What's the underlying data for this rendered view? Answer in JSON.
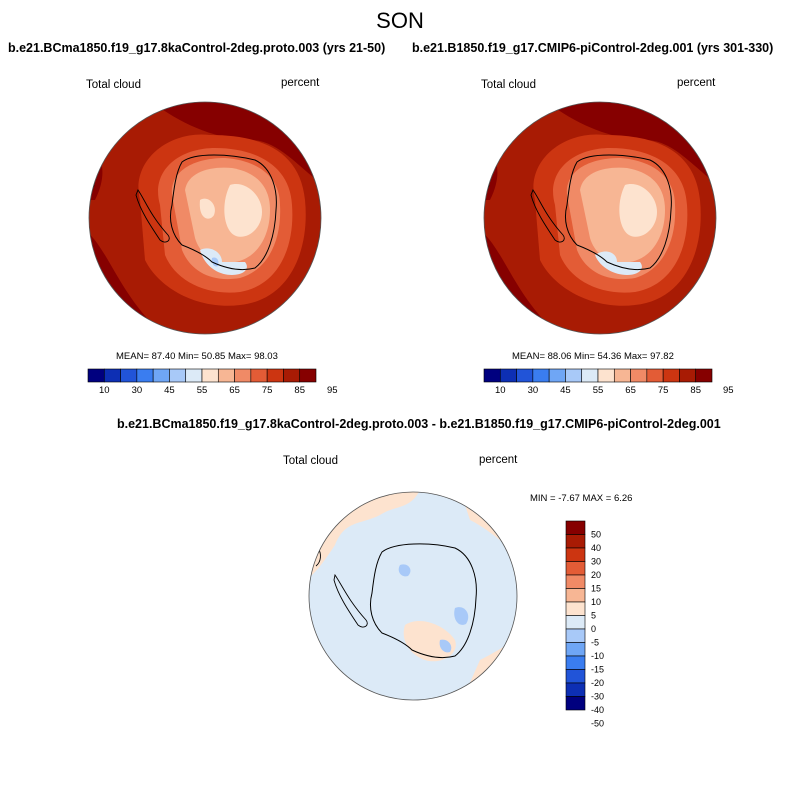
{
  "season": "SON",
  "panels": [
    {
      "title": "b.e21.BCma1850.f19_g17.8kaControl-2deg.proto.003 (yrs 21-50)",
      "left_label": "Total cloud",
      "right_label": "percent",
      "stats": "MEAN=  87.40  Min=  50.85  Max=  98.03",
      "colorbar_labels": [
        "10",
        "30",
        "45",
        "55",
        "65",
        "75",
        "85",
        "95"
      ]
    },
    {
      "title": "b.e21.B1850.f19_g17.CMIP6-piControl-2deg.001 (yrs 301-330)",
      "left_label": "Total cloud",
      "right_label": "percent",
      "stats": "MEAN=  88.06  Min=  54.36  Max=  97.82",
      "colorbar_labels": [
        "10",
        "30",
        "45",
        "55",
        "65",
        "75",
        "85",
        "95"
      ]
    },
    {
      "title": "b.e21.BCma1850.f19_g17.8kaControl-2deg.proto.003 - b.e21.B1850.f19_g17.CMIP6-piControl-2deg.001",
      "left_label": "Total cloud",
      "right_label": "percent",
      "stats": "MIN =  -7.67 MAX =   6.26",
      "colorbar_labels": [
        "50",
        "40",
        "30",
        "20",
        "15",
        "10",
        "5",
        "0",
        "-5",
        "-10",
        "-15",
        "-20",
        "-30",
        "-40",
        "-50"
      ]
    }
  ],
  "colors": {
    "abs_scale": [
      "#00007f",
      "#0d2fb4",
      "#2154d8",
      "#3a7df0",
      "#6fa6f5",
      "#a8c9f8",
      "#dceaf7",
      "#fde3cf",
      "#f7b694",
      "#f08a66",
      "#e35c36",
      "#cc3511",
      "#a81b04",
      "#860000"
    ],
    "diff_scale": [
      "#860000",
      "#a81b04",
      "#cc3511",
      "#e35c36",
      "#f08a66",
      "#f7b694",
      "#fde3cf",
      "#dceaf7",
      "#a8c9f8",
      "#6fa6f5",
      "#3a7df0",
      "#2154d8",
      "#0d2fb4",
      "#00007f"
    ]
  }
}
